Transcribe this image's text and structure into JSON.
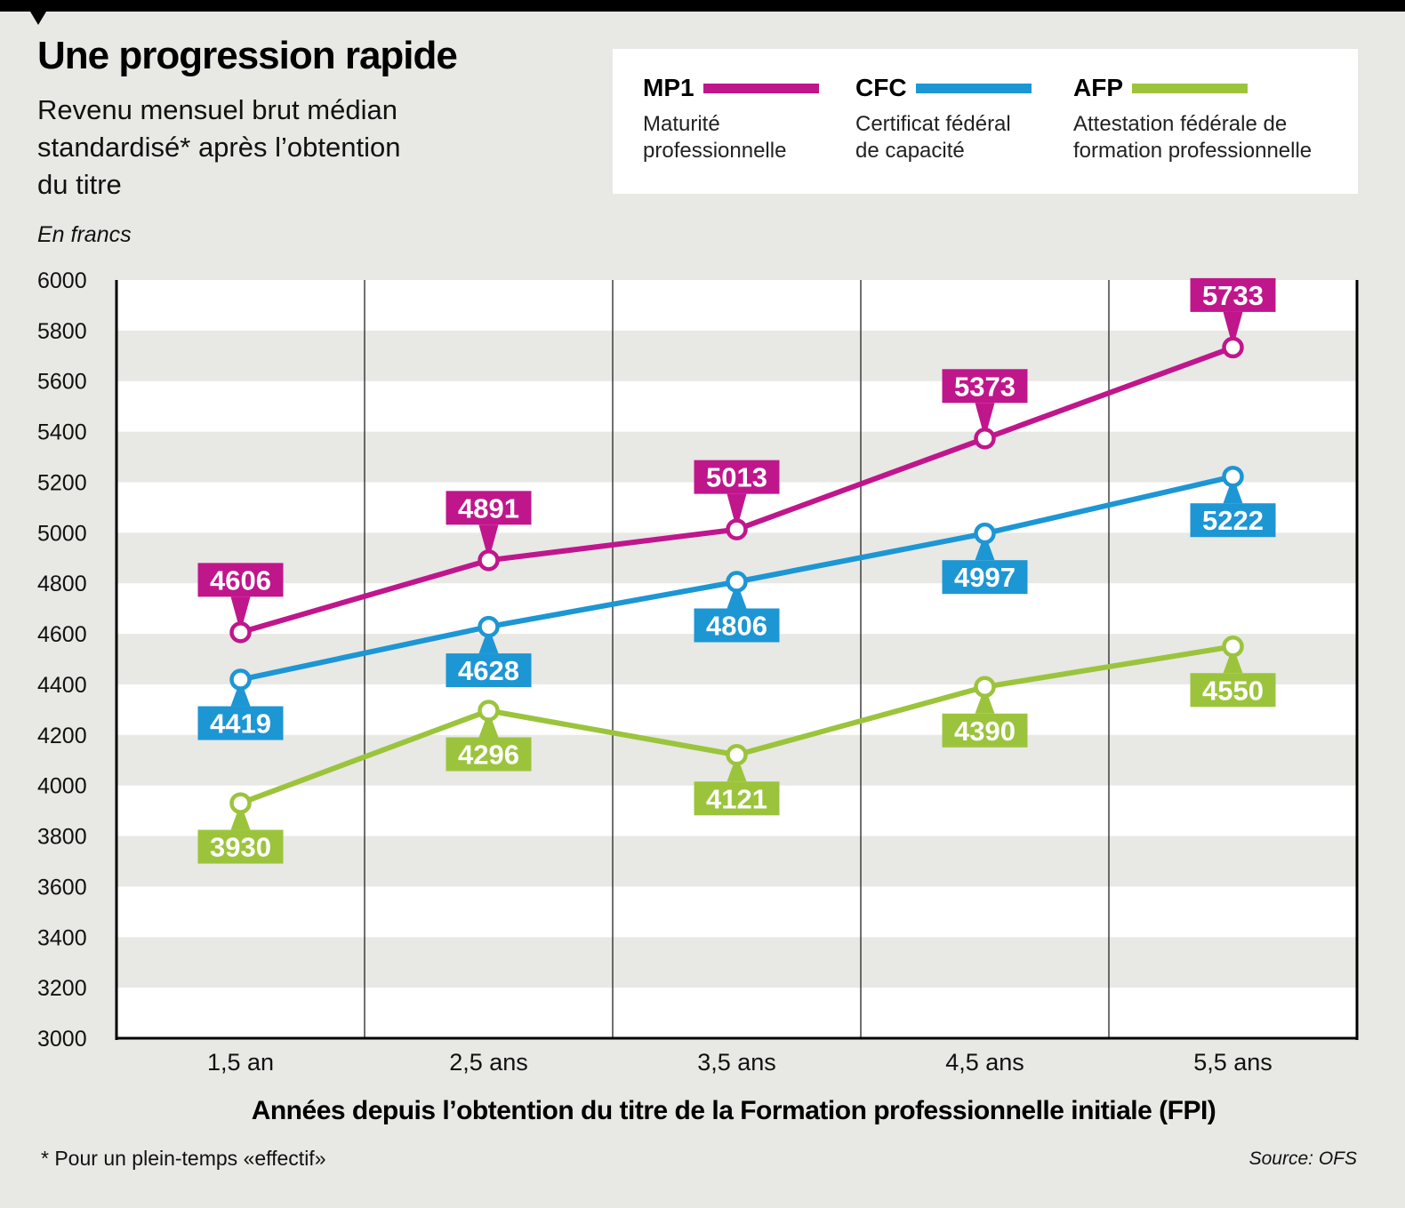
{
  "chart_data": {
    "type": "line",
    "title": "Une progression rapide",
    "subtitle": "Revenu mensuel brut médian standardisé* après l’obtention du titre",
    "ylabel": "En francs",
    "xlabel": "Années depuis l’obtention du titre de la Formation professionnelle initiale (FPI)",
    "categories": [
      "1,5 an",
      "2,5 ans",
      "3,5 ans",
      "4,5 ans",
      "5,5 ans"
    ],
    "ylim": [
      3000,
      6000
    ],
    "yticks": [
      6000,
      5800,
      5600,
      5400,
      5200,
      5000,
      4800,
      4600,
      4400,
      4200,
      4000,
      3800,
      3600,
      3400,
      3200,
      3000
    ],
    "series": [
      {
        "name": "MP1",
        "description": "Maturité professionnelle",
        "color": "#c0168c",
        "values": [
          4606,
          4891,
          5013,
          5373,
          5733
        ]
      },
      {
        "name": "CFC",
        "description": "Certificat fédéral de capacité",
        "color": "#1d96d4",
        "values": [
          4419,
          4628,
          4806,
          4997,
          5222
        ]
      },
      {
        "name": "AFP",
        "description": "Attestation fédérale de formation professionnelle",
        "color": "#9bc43c",
        "values": [
          3930,
          4296,
          4121,
          4390,
          4550
        ]
      }
    ],
    "legend": "top-right",
    "grid": "alternating horizontal bands"
  },
  "footnote": "* Pour un plein-temps «effectif»",
  "source": "Source: OFS"
}
